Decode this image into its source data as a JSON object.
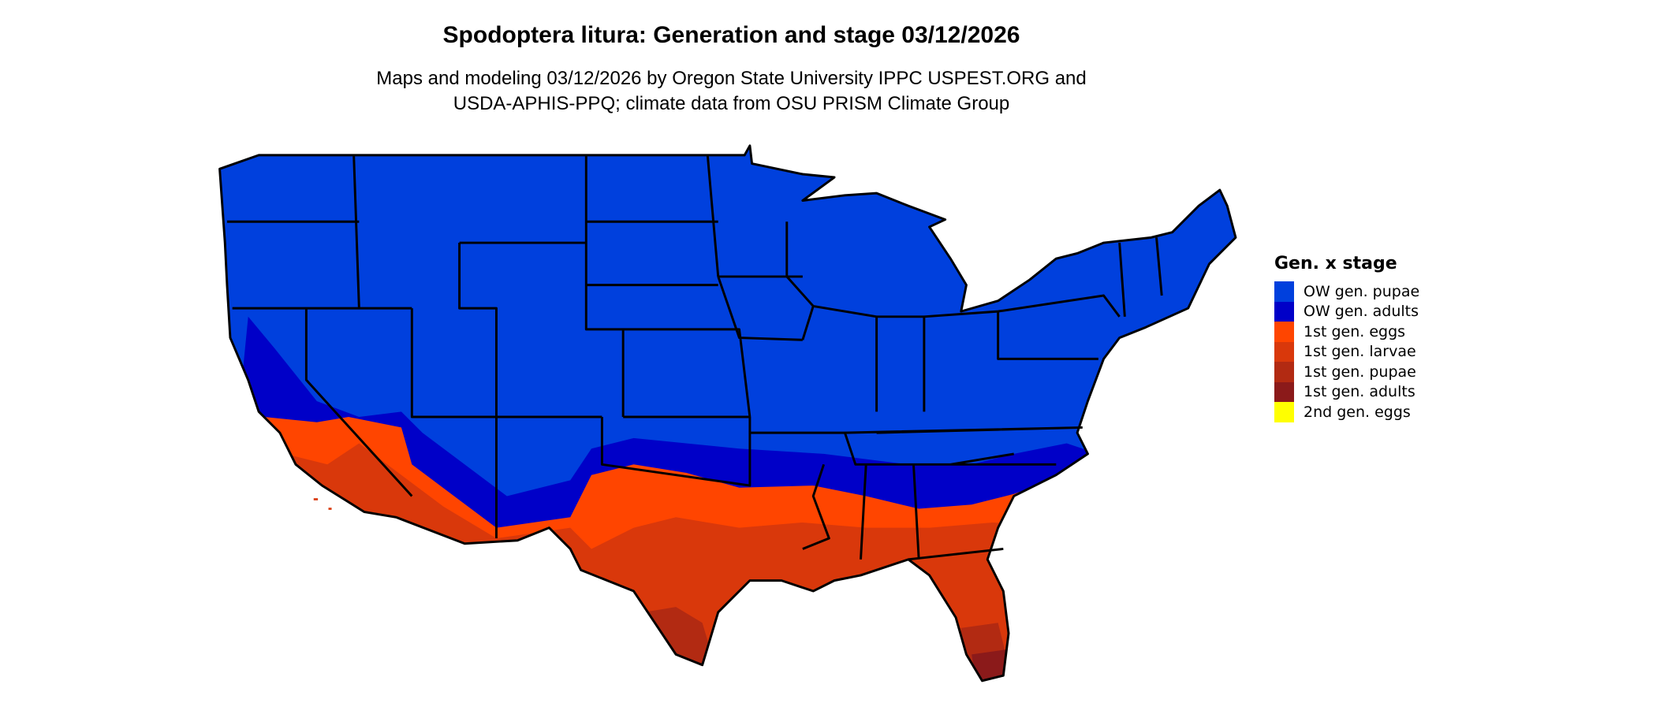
{
  "header": {
    "title": "Spodoptera litura: Generation and stage 03/12/2026",
    "subtitle_line1": "Maps and modeling 03/12/2026 by Oregon State University IPPC USPEST.ORG and",
    "subtitle_line2": "USDA-APHIS-PPQ; climate data from OSU PRISM Climate Group"
  },
  "legend": {
    "title": "Gen. x stage",
    "items": [
      {
        "label": "OW gen. pupae",
        "color": "#0040DD"
      },
      {
        "label": "OW gen. adults",
        "color": "#0000C8"
      },
      {
        "label": "1st gen. eggs",
        "color": "#FF4500"
      },
      {
        "label": "1st gen. larvae",
        "color": "#D9380B"
      },
      {
        "label": "1st gen. pupae",
        "color": "#B22A12"
      },
      {
        "label": "1st gen. adults",
        "color": "#8B1A1A"
      },
      {
        "label": "2nd gen. eggs",
        "color": "#FFFF00"
      }
    ]
  }
}
